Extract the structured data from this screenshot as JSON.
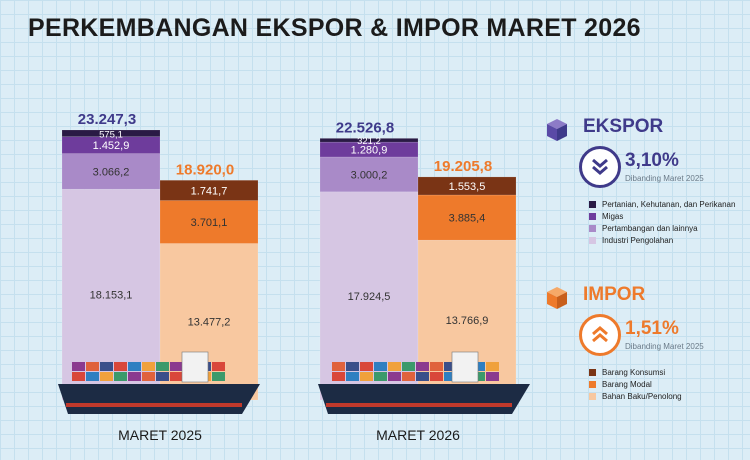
{
  "title": "PERKEMBANGAN EKSPOR & IMPOR MARET 2026",
  "colors": {
    "background": "#dcedf6",
    "ekspor_accent": "#3f3a8a",
    "impor_accent": "#ee7a2b"
  },
  "legend": {
    "ekspor": {
      "label": "EKSPOR",
      "change": "3,10%",
      "direction": "down",
      "compare": "Dibanding Maret 2025",
      "icon": "chevrons-down-icon",
      "items": [
        {
          "label": "Pertanian, Kehutanan, dan Perikanan",
          "color": "#2a1a45"
        },
        {
          "label": "Migas",
          "color": "#6e3c9c"
        },
        {
          "label": "Pertambangan dan lainnya",
          "color": "#a98ac8"
        },
        {
          "label": "Industri Pengolahan",
          "color": "#d6c6e3"
        }
      ]
    },
    "impor": {
      "label": "IMPOR",
      "change": "1,51%",
      "direction": "up",
      "compare": "Dibanding Maret 2025",
      "icon": "chevrons-up-icon",
      "items": [
        {
          "label": "Barang Konsumsi",
          "color": "#7a3415"
        },
        {
          "label": "Barang Modal",
          "color": "#ee7a2b"
        },
        {
          "label": "Bahan Baku/Penolong",
          "color": "#f8c8a0"
        }
      ]
    }
  },
  "chart_data": {
    "type": "bar",
    "stacked": true,
    "categories": [
      "MARET 2025",
      "MARET 2026"
    ],
    "totals": {
      "ekspor": [
        "23.247,3",
        "22.526,8"
      ],
      "impor": [
        "18.920,0",
        "19.205,8"
      ]
    },
    "series": [
      {
        "group": "ekspor",
        "name": "Industri Pengolahan",
        "values": [
          18153.1,
          17924.5
        ],
        "labels": [
          "18.153,1",
          "17.924,5"
        ],
        "color": "#d6c6e3"
      },
      {
        "group": "ekspor",
        "name": "Pertambangan dan lainnya",
        "values": [
          3066.2,
          3000.2
        ],
        "labels": [
          "3.066,2",
          "3.000,2"
        ],
        "color": "#a98ac8"
      },
      {
        "group": "ekspor",
        "name": "Migas",
        "values": [
          1452.9,
          1280.9
        ],
        "labels": [
          "1.452,9",
          "1.280,9"
        ],
        "color": "#6e3c9c"
      },
      {
        "group": "ekspor",
        "name": "Pertanian, Kehutanan, dan Perikanan",
        "values": [
          575.1,
          321.2
        ],
        "labels": [
          "575,1",
          "321,2"
        ],
        "color": "#2a1a45"
      },
      {
        "group": "impor",
        "name": "Bahan Baku/Penolong",
        "values": [
          13477.2,
          13766.9
        ],
        "labels": [
          "13.477,2",
          "13.766,9"
        ],
        "color": "#f8c8a0"
      },
      {
        "group": "impor",
        "name": "Barang Modal",
        "values": [
          3701.1,
          3885.4
        ],
        "labels": [
          "3.701,1",
          "3.885,4"
        ],
        "color": "#ee7a2b"
      },
      {
        "group": "impor",
        "name": "Barang Konsumsi",
        "values": [
          1741.7,
          1553.5
        ],
        "labels": [
          "1.741,7",
          "1.553,5"
        ],
        "color": "#7a3415"
      }
    ]
  }
}
